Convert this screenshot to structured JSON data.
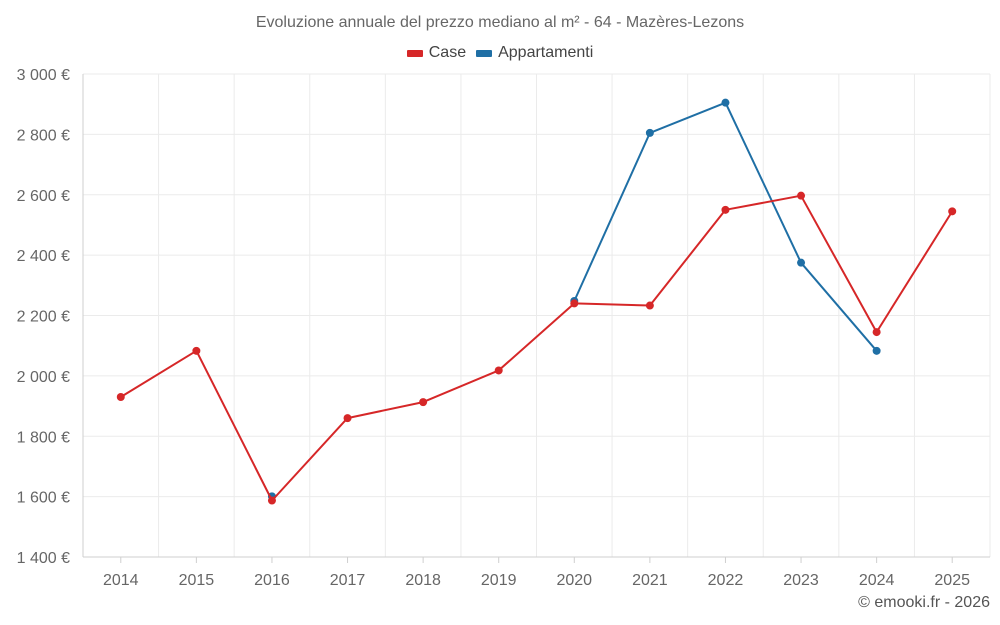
{
  "chart_data": {
    "type": "line",
    "title": "Evoluzione annuale del prezzo mediano al m² - 64 - Mazères-Lezons",
    "categories": [
      "2014",
      "2015",
      "2016",
      "2017",
      "2018",
      "2019",
      "2020",
      "2021",
      "2022",
      "2023",
      "2024",
      "2025"
    ],
    "series": [
      {
        "name": "Case",
        "color": "#d62728",
        "values": [
          1930,
          2083,
          1587,
          1860,
          1913,
          2018,
          2240,
          2233,
          2550,
          2597,
          2145,
          2545
        ]
      },
      {
        "name": "Appartamenti",
        "color": "#1f6fa5",
        "values": [
          null,
          null,
          1601,
          null,
          null,
          null,
          2248,
          2805,
          2905,
          2375,
          2083,
          null
        ]
      }
    ],
    "ylim": [
      1400,
      3000
    ],
    "yticks": [
      1400,
      1600,
      1800,
      2000,
      2200,
      2400,
      2600,
      2800,
      3000
    ],
    "ytick_labels": [
      "1 400 €",
      "1 600 €",
      "1 800 €",
      "2 000 €",
      "2 200 €",
      "2 400 €",
      "2 600 €",
      "2 800 €",
      "3 000 €"
    ],
    "xlabel": "",
    "ylabel": "",
    "grid": true,
    "legend": "top-center"
  },
  "credit": "© emooki.fr - 2026"
}
